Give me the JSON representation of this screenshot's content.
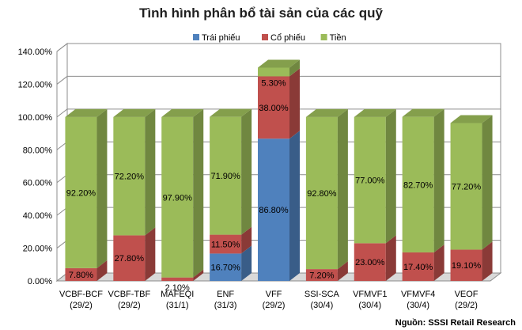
{
  "chart_data": {
    "type": "bar",
    "stacked": true,
    "three_d": true,
    "title": "Tình hình phân bổ tài sản của các quỹ",
    "source": "Nguồn: SSSI Retail Research",
    "categories": [
      [
        "VCBF-BCF",
        "(29/2)"
      ],
      [
        "VCBF-TBF",
        "(29/2)"
      ],
      [
        "MAFEQI",
        "(31/1)"
      ],
      [
        "ENF",
        "(31/3)"
      ],
      [
        "VFF",
        "(29/2)"
      ],
      [
        "SSI-SCA",
        "(30/4)"
      ],
      [
        "VFMVF1",
        "(30/4)"
      ],
      [
        "VFMVF4",
        "(30/4)"
      ],
      [
        "VEOF",
        "(29/2)"
      ]
    ],
    "series": [
      {
        "name": "Trái phiếu",
        "color": "#4f81bd",
        "values": [
          0,
          0,
          0,
          16.7,
          86.8,
          0,
          0,
          0,
          0
        ],
        "labels": [
          "",
          "",
          "",
          "16.70%",
          "86.80%",
          "",
          "",
          "",
          ""
        ]
      },
      {
        "name": "Cổ phiếu",
        "color": "#c0504d",
        "values": [
          7.8,
          27.8,
          2.1,
          11.5,
          38.0,
          7.2,
          23.0,
          17.4,
          19.1
        ],
        "labels": [
          "7.80%",
          "27.80%",
          "2.10%",
          "11.50%",
          "38.00%",
          "7.20%",
          "23.00%",
          "17.40%",
          "19.10%"
        ]
      },
      {
        "name": "Tiền",
        "color": "#9bbb59",
        "values": [
          92.2,
          72.2,
          97.9,
          71.9,
          5.3,
          92.8,
          77.0,
          82.7,
          77.2
        ],
        "labels": [
          "92.20%",
          "72.20%",
          "97.90%",
          "71.90%",
          "5.30%",
          "92.80%",
          "77.00%",
          "82.70%",
          "77.20%"
        ]
      }
    ],
    "ylim": [
      0,
      140
    ],
    "yticks": [
      "0.00%",
      "20.00%",
      "40.00%",
      "60.00%",
      "80.00%",
      "100.00%",
      "120.00%",
      "140.00%"
    ],
    "grid": true,
    "legend_position": "top-right"
  }
}
